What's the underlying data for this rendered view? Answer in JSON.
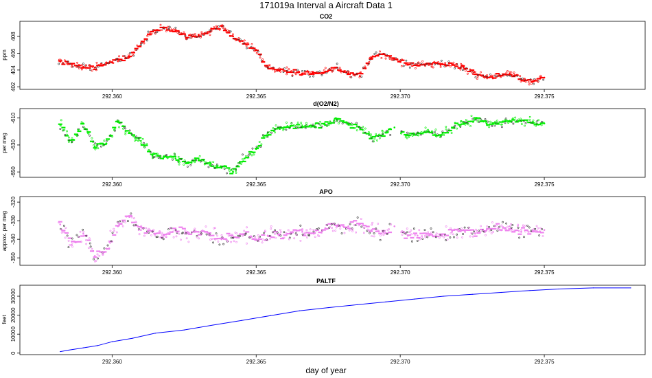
{
  "figure": {
    "title": "171019a   Interval a Aircraft Data 1",
    "xlabel": "day of year"
  },
  "chart_data": [
    {
      "type": "scatter",
      "title": "CO2",
      "ylabel": "ppm",
      "color": "#ff0000",
      "xlim": [
        292.3568,
        292.3785
      ],
      "ylim": [
        401.7,
        409.8
      ],
      "x_ticks": [
        292.36,
        292.365,
        292.37,
        292.375
      ],
      "x_tick_labels": [
        "292.360",
        "292.365",
        "292.370",
        "292.375"
      ],
      "y_ticks": [
        402,
        404,
        406,
        408
      ],
      "y_tick_labels": [
        "402",
        "404",
        "406",
        "408"
      ],
      "x": [
        292.3582,
        292.3586,
        292.359,
        292.3594,
        292.3598,
        292.3602,
        292.3606,
        292.361,
        292.3614,
        292.3618,
        292.3622,
        292.3626,
        292.363,
        292.3634,
        292.3638,
        292.3642,
        292.3646,
        292.365,
        292.3654,
        292.3658,
        292.3662,
        292.3666,
        292.367,
        292.3674,
        292.3678,
        292.3682,
        292.3686,
        292.369,
        292.3694,
        292.3698,
        292.3702,
        292.3706,
        292.371,
        292.3714,
        292.3718,
        292.3722,
        292.3726,
        292.373,
        292.3734,
        292.3738,
        292.3742,
        292.3746,
        292.375
      ],
      "y": [
        405.0,
        404.7,
        404.4,
        404.3,
        404.8,
        405.3,
        405.5,
        407.2,
        408.6,
        409.0,
        408.7,
        407.8,
        408.2,
        408.6,
        409.2,
        408.0,
        407.2,
        406.4,
        404.3,
        403.9,
        403.8,
        403.6,
        403.5,
        403.8,
        404.3,
        403.6,
        403.3,
        405.5,
        405.9,
        405.3,
        404.8,
        404.6,
        404.7,
        404.6,
        404.7,
        404.3,
        403.5,
        403.2,
        403.3,
        403.6,
        402.9,
        402.6,
        403.1
      ]
    },
    {
      "type": "scatter",
      "title": "d(O2/N2)",
      "ylabel": "per meg",
      "color": "#00ee00",
      "xlim": [
        292.3568,
        292.3785
      ],
      "ylim": [
        -654,
        -603
      ],
      "x_ticks": [
        292.36,
        292.365,
        292.37,
        292.375
      ],
      "x_tick_labels": [
        "292.360",
        "292.365",
        "292.370",
        "292.375"
      ],
      "y_ticks": [
        -610,
        -630,
        -650
      ],
      "y_tick_labels": [
        "-610",
        "-630",
        "-650"
      ],
      "gaps": [
        [
          292.36975,
          292.37005
        ]
      ],
      "x": [
        292.3582,
        292.3586,
        292.359,
        292.3594,
        292.3598,
        292.3602,
        292.3606,
        292.361,
        292.3614,
        292.3618,
        292.3622,
        292.3626,
        292.363,
        292.3634,
        292.3638,
        292.3642,
        292.3646,
        292.365,
        292.3654,
        292.3658,
        292.3662,
        292.3666,
        292.367,
        292.3674,
        292.3678,
        292.3682,
        292.3686,
        292.369,
        292.3694,
        292.3698,
        292.3702,
        292.3706,
        292.371,
        292.3714,
        292.3718,
        292.3722,
        292.3726,
        292.373,
        292.3734,
        292.3738,
        292.3742,
        292.3746,
        292.375
      ],
      "y": [
        -615,
        -628,
        -614,
        -631,
        -629,
        -613,
        -621,
        -627,
        -638,
        -639,
        -640,
        -643,
        -640,
        -645,
        -647,
        -650,
        -640,
        -633,
        -621,
        -618,
        -616,
        -616,
        -616,
        -615,
        -611,
        -615,
        -617,
        -625,
        -622,
        -617,
        -623,
        -621,
        -620,
        -623,
        -617,
        -614,
        -611,
        -614,
        -614,
        -612,
        -612,
        -613,
        -614
      ]
    },
    {
      "type": "scatter",
      "title": "APO",
      "ylabel": "approx. per meg",
      "color": "#ee82ee",
      "xlim": [
        292.3568,
        292.3785
      ],
      "ylim": [
        -354,
        -317
      ],
      "x_ticks": [
        292.36,
        292.365,
        292.37,
        292.375
      ],
      "x_tick_labels": [
        "292.360",
        "292.365",
        "292.370",
        "292.375"
      ],
      "y_ticks": [
        -320,
        -330,
        -340,
        -350
      ],
      "y_tick_labels": [
        "-320",
        "-330",
        "-340",
        "-350"
      ],
      "gaps": [
        [
          292.36975,
          292.37005
        ]
      ],
      "x": [
        292.3582,
        292.3586,
        292.359,
        292.3594,
        292.3598,
        292.3602,
        292.3606,
        292.361,
        292.3614,
        292.3618,
        292.3622,
        292.3626,
        292.363,
        292.3634,
        292.3638,
        292.3642,
        292.3646,
        292.365,
        292.3654,
        292.3658,
        292.3662,
        292.3666,
        292.367,
        292.3674,
        292.3678,
        292.3682,
        292.3686,
        292.369,
        292.3694,
        292.3698,
        292.3702,
        292.3706,
        292.371,
        292.3714,
        292.3718,
        292.3722,
        292.3726,
        292.373,
        292.3734,
        292.3738,
        292.3742,
        292.3746,
        292.375
      ],
      "y": [
        -332,
        -343,
        -337,
        -349,
        -345,
        -333,
        -328,
        -335,
        -336,
        -338,
        -335,
        -337,
        -336,
        -338,
        -340,
        -339,
        -337,
        -340,
        -338,
        -338,
        -337,
        -336,
        -337,
        -334,
        -333,
        -333,
        -332,
        -335,
        -336,
        -333,
        -337,
        -338,
        -338,
        -338,
        -336,
        -335,
        -337,
        -335,
        -334,
        -333,
        -336,
        -335,
        -335
      ]
    },
    {
      "type": "line",
      "title": "PALTF",
      "ylabel": "feet",
      "color": "#0000ff",
      "xlim": [
        292.3568,
        292.3785
      ],
      "ylim": [
        -800,
        35800
      ],
      "x_ticks": [
        292.36,
        292.365,
        292.37,
        292.375
      ],
      "x_tick_labels": [
        "292.360",
        "292.365",
        "292.370",
        "292.375"
      ],
      "y_ticks": [
        0,
        10000,
        20000,
        30000
      ],
      "y_tick_labels": [
        "0",
        "10000",
        "20000",
        "30000"
      ],
      "x": [
        292.3582,
        292.3585,
        292.359,
        292.3595,
        292.36,
        292.3607,
        292.3615,
        292.3625,
        292.3635,
        292.3645,
        292.3655,
        292.3665,
        292.3675,
        292.3685,
        292.3695,
        292.3705,
        292.3715,
        292.3725,
        292.3735,
        292.3745,
        292.3755,
        292.3767,
        292.378
      ],
      "y": [
        800,
        1600,
        2800,
        4000,
        6000,
        7800,
        10500,
        12200,
        14800,
        17200,
        19800,
        22300,
        24000,
        25500,
        27000,
        28500,
        30000,
        31000,
        32000,
        33000,
        33800,
        34400,
        34400
      ]
    }
  ]
}
